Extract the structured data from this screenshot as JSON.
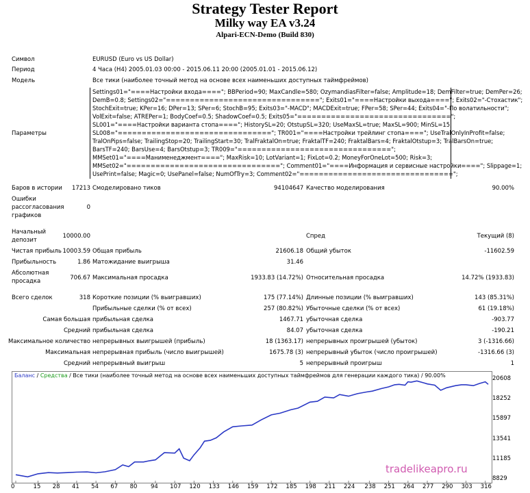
{
  "report": {
    "title": "Strategy Tester Report",
    "ea_name": "Milky way EA v3.24",
    "server": "Alpari-ECN-Demo (Build 830)"
  },
  "info": {
    "symbol_label": "Символ",
    "symbol_value": "EURUSD (Euro vs US Dollar)",
    "period_label": "Период",
    "period_value": "4 Часа (H4) 2005.01.03 00:00 - 2015.06.11 20:00 (2005.01.01 - 2015.06.12)",
    "model_label": "Модель",
    "model_value": "Все тики (наиболее точный метод на основе всех наименьших доступных таймфреймов)",
    "params_label": "Параметры",
    "params_lines": [
      "Settings01=\"====Настройки входа====\"; BBPeriod=90; MaxCandle=580; OzymandiasFilter=false; Amplitude=18; DemFilter=true; DemPer=26;",
      "DemB=0.8; Settings02=\"================================\"; Exits01=\"====Настройки выхода====\"; Exits02=\"-Стохастик\";",
      "StochExit=true; KPer=16; DPer=13; SPer=6; StochB=95; Exits03=\"-MACD\"; MACDExit=true; FPer=58; SPer=44; Exits04=\"-По волатильности\";",
      "VolExit=false; ATREPer=1; BodyCoef=0.5; ShadowCoef=0.5; Exits05=\"================================\";",
      "SL001=\"====Настройки варианта стопа====\"; HistorySL=20; OtstupSL=320; UseMaxSL=true; MaxSL=900; MinSL=15;",
      "SL008=\"================================\"; TR001=\"====Настройки трейлинг стопа====\"; UseTralOnlyInProfit=false;",
      "TralOnPips=false; TrailingStop=20; TrailingStart=30; TralFraktalOn=true; FraktalTF=240; FraktalBars=4; FraktalOtstup=3; TralBarsOn=true;",
      "BarsTF=240; BarsUse=4; BarsOtstup=3; TR009=\"================================\";",
      "MMSet01=\"====Манименеджмент====\"; MaxRisk=10; LotVariant=1; FixLot=0.2; MoneyForOneLot=500; Risk=3;",
      "MMSet02=\"================================\"; Comment01=\"====Информация и сервисные настройки====\"; Slippage=1;",
      "UsePrint=false; Magic=0; UsePanel=false; NumOfTry=3; Comment02=\"================================\";"
    ]
  },
  "stats": {
    "bars_label": "Баров в истории",
    "bars_value": "17213",
    "ticks_label": "Смоделировано тиков",
    "ticks_value": "94104647",
    "quality_label": "Качество моделирования",
    "quality_value": "90.00%",
    "errors_label_1": "Ошибки",
    "errors_label_2": "рассогласования",
    "errors_label_3": "графиков",
    "errors_value": "0",
    "deposit_label_1": "Начальный",
    "deposit_label_2": "депозит",
    "deposit_value": "10000.00",
    "spread_label": "Спред",
    "spread_value": "Текущий (8)",
    "net_label": "Чистая прибыль",
    "net_value": "10003.59",
    "gross_profit_label": "Общая прибыль",
    "gross_profit_value": "21606.18",
    "gross_loss_label": "Общий убыток",
    "gross_loss_value": "-11602.59",
    "pf_label": "Прибыльность",
    "pf_value": "1.86",
    "ep_label": "Матожидание выигрыша",
    "ep_value": "31.46",
    "absdd_label_1": "Абсолютная",
    "absdd_label_2": "просадка",
    "absdd_value": "706.67",
    "maxdd_label": "Максимальная просадка",
    "maxdd_value": "1933.83 (14.72%)",
    "reldd_label": "Относительная просадка",
    "reldd_value": "14.72% (1933.83)",
    "trades_label": "Всего сделок",
    "trades_value": "318",
    "short_label": "Короткие позиции (% выигравших)",
    "short_value": "175 (77.14%)",
    "long_label": "Длинные позиции (% выигравших)",
    "long_value": "143 (85.31%)",
    "pt_label": "Прибыльные сделки (% от всех)",
    "pt_value": "257 (80.82%)",
    "lt_label": "Убыточные сделки (% от всех)",
    "lt_value": "61 (19.18%)",
    "largest_label": "Самая большая",
    "largest_pt_label": "прибыльная сделка",
    "largest_pt_value": "1467.71",
    "largest_lt_label": "убыточная сделка",
    "largest_lt_value": "-903.77",
    "average_label": "Средний",
    "avg_pt_label": "прибыльная сделка",
    "avg_pt_value": "84.07",
    "avg_lt_label": "убыточная сделка",
    "avg_lt_value": "-190.21",
    "maxcount_label": "Максимальное количество",
    "mcw_label": "непрерывных выигрышей (прибыль)",
    "mcw_value": "18 (1363.17)",
    "mcl_label": "непрерывных проигрышей (убыток)",
    "mcl_value": "3 (-1316.66)",
    "maximal_label": "Максимальная",
    "mxw_label": "непрерывная прибыль (число выигрышей)",
    "mxw_value": "1675.78 (3)",
    "mxl_label": "непрерывный убыток (число проигрышей)",
    "mxl_value": "-1316.66 (3)",
    "avgc_label": "Средний",
    "acw_label": "непрерывный выигрыш",
    "acw_value": "5",
    "acl_label": "непрерывный проигрыш",
    "acl_value": "1"
  },
  "chart_data": {
    "type": "line",
    "legend": {
      "balance": "Баланс",
      "sep1": " / ",
      "equity": "Средства",
      "sep2": " / ",
      "desc": "Все тики (наиболее точный метод на основе всех наименьших доступных таймфреймов для генерации каждого тика)",
      "sep3": " / ",
      "quality": "90.00%"
    },
    "y_ticks": [
      "20608",
      "18252",
      "15897",
      "13541",
      "11185",
      "8829"
    ],
    "x_ticks": [
      "0",
      "15",
      "28",
      "41",
      "54",
      "67",
      "80",
      "94",
      "107",
      "120",
      "133",
      "146",
      "159",
      "172",
      "185",
      "198",
      "211",
      "224",
      "238",
      "251",
      "264",
      "277",
      "290",
      "303",
      "316"
    ],
    "ylim": [
      8829,
      20608
    ],
    "xlim": [
      0,
      318
    ],
    "series": [
      {
        "color": "#2a38c5",
        "x": [
          0,
          8,
          15,
          22,
          28,
          35,
          41,
          48,
          54,
          60,
          67,
          72,
          76,
          80,
          86,
          90,
          94,
          100,
          107,
          110,
          113,
          117,
          120,
          124,
          127,
          131,
          135,
          140,
          146,
          152,
          159,
          165,
          172,
          178,
          185,
          190,
          198,
          203,
          208,
          214,
          218,
          224,
          230,
          236,
          240,
          246,
          251,
          255,
          258,
          262,
          264,
          266,
          270,
          275,
          277,
          282,
          286,
          290,
          296,
          300,
          303,
          308,
          312,
          316,
          318
        ],
        "y": [
          9450,
          9200,
          9560,
          9700,
          9650,
          9700,
          9760,
          9780,
          9680,
          9800,
          10050,
          10600,
          10400,
          10950,
          10950,
          11100,
          11200,
          12050,
          12000,
          12500,
          11400,
          11100,
          11800,
          12600,
          13400,
          13500,
          13800,
          14500,
          15100,
          15200,
          15300,
          15900,
          16500,
          16700,
          17100,
          17300,
          18000,
          18100,
          18600,
          18500,
          18900,
          18700,
          19000,
          19200,
          19300,
          19600,
          19800,
          20050,
          20100,
          20000,
          20400,
          20350,
          20500,
          20250,
          20150,
          20000,
          19400,
          19700,
          19950,
          20050,
          20050,
          19950,
          20200,
          20400,
          20100
        ]
      }
    ],
    "watermark": "tradelikeapro.ru"
  }
}
